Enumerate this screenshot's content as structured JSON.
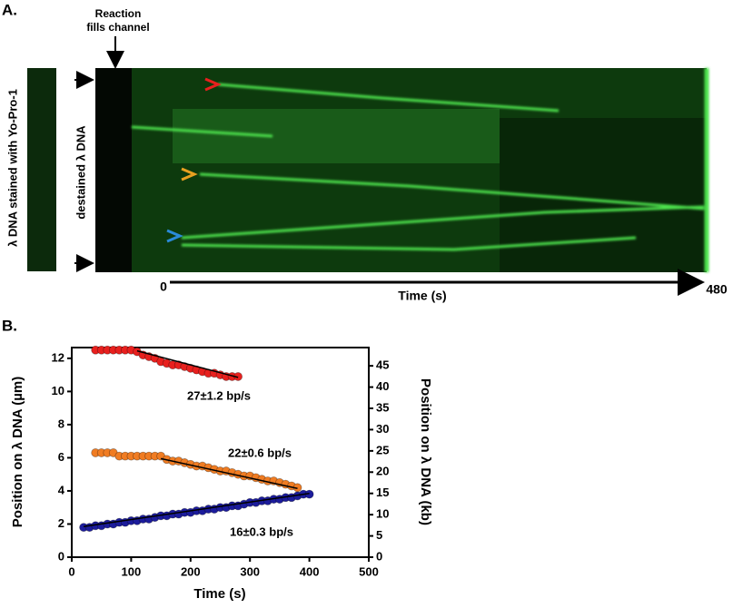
{
  "panel_a": {
    "label": "A.",
    "annotation_line1": "Reaction",
    "annotation_line2": "fills channel",
    "strip_label": "λ DNA stained with Yo-Pro-1",
    "kymo_label": "destained λ DNA",
    "time_start": 0,
    "time_end": 480,
    "time_label": "Time (s)"
  },
  "chart_data": {
    "type": "scatter",
    "panel_label": "B.",
    "x_label": "Time (s)",
    "y_label": "Position on λ DNA (µm)",
    "y2_label": "Position on λ DNA (kb)",
    "xlim": [
      0,
      500
    ],
    "xticks": [
      0,
      100,
      200,
      300,
      400,
      500
    ],
    "ylim": [
      0,
      12.65
    ],
    "yticks": [
      0,
      2,
      4,
      6,
      8,
      10,
      12
    ],
    "y2lim": [
      0,
      49.3
    ],
    "y2ticks": [
      0,
      5,
      10,
      15,
      20,
      25,
      30,
      35,
      40,
      45
    ],
    "series": [
      {
        "color": "#e8201e",
        "x": [
          40,
          50,
          60,
          70,
          80,
          90,
          100,
          110,
          120,
          130,
          140,
          150,
          160,
          170,
          180,
          190,
          200,
          210,
          220,
          230,
          240,
          250,
          260,
          270,
          280
        ],
        "values": [
          12.5,
          12.5,
          12.5,
          12.5,
          12.5,
          12.5,
          12.5,
          12.4,
          12.2,
          12.1,
          12.0,
          11.8,
          11.7,
          11.6,
          11.6,
          11.5,
          11.4,
          11.3,
          11.2,
          11.1,
          11.1,
          11.0,
          10.9,
          10.9,
          10.9
        ]
      },
      {
        "color": "#f07c22",
        "x": [
          40,
          50,
          60,
          70,
          80,
          90,
          100,
          110,
          120,
          130,
          140,
          150,
          160,
          170,
          180,
          190,
          200,
          210,
          220,
          230,
          240,
          250,
          260,
          270,
          280,
          290,
          300,
          310,
          320,
          330,
          340,
          350,
          360,
          370,
          380
        ],
        "values": [
          6.3,
          6.3,
          6.3,
          6.3,
          6.1,
          6.1,
          6.1,
          6.1,
          6.1,
          6.1,
          6.1,
          6.1,
          5.9,
          5.8,
          5.8,
          5.7,
          5.6,
          5.5,
          5.5,
          5.4,
          5.3,
          5.2,
          5.2,
          5.1,
          5.0,
          4.9,
          4.9,
          4.8,
          4.7,
          4.6,
          4.6,
          4.5,
          4.4,
          4.3,
          4.2
        ]
      },
      {
        "color": "#1c1c9c",
        "x": [
          20,
          30,
          40,
          50,
          60,
          70,
          80,
          90,
          100,
          110,
          120,
          130,
          140,
          150,
          160,
          170,
          180,
          190,
          200,
          210,
          220,
          230,
          240,
          250,
          260,
          270,
          280,
          290,
          300,
          310,
          320,
          330,
          340,
          350,
          360,
          370,
          380,
          390,
          400
        ],
        "values": [
          1.8,
          1.8,
          1.9,
          1.9,
          2.0,
          2.0,
          2.1,
          2.1,
          2.2,
          2.2,
          2.3,
          2.3,
          2.4,
          2.5,
          2.5,
          2.6,
          2.6,
          2.7,
          2.7,
          2.8,
          2.8,
          2.9,
          2.9,
          3.0,
          3.0,
          3.1,
          3.1,
          3.2,
          3.3,
          3.3,
          3.4,
          3.4,
          3.5,
          3.5,
          3.6,
          3.6,
          3.7,
          3.8,
          3.8
        ]
      }
    ],
    "fit_lines": [
      {
        "color": "#000000",
        "x": [
          110,
          280
        ],
        "values": [
          12.45,
          10.85
        ]
      },
      {
        "color": "#000000",
        "x": [
          150,
          380
        ],
        "values": [
          5.95,
          4.15
        ]
      },
      {
        "color": "#000000",
        "x": [
          20,
          400
        ],
        "values": [
          1.85,
          3.85
        ]
      }
    ],
    "annotations": [
      "27±1.2 bp/s",
      "22±0.6 bp/s",
      "16±0.3 bp/s"
    ]
  }
}
